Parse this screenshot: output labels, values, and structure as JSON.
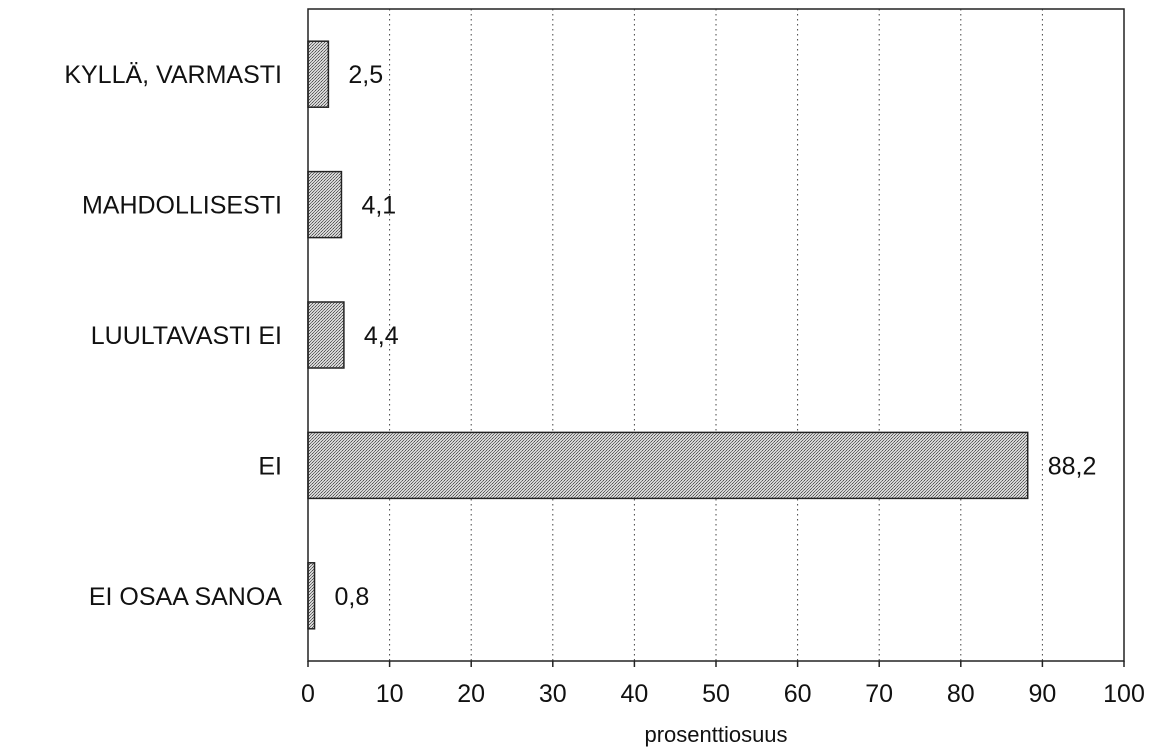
{
  "chart_data": {
    "type": "bar",
    "orientation": "horizontal",
    "categories": [
      "KYLLÄ, VARMASTI",
      "MAHDOLLISESTI",
      "LUULTAVASTI EI",
      "EI",
      "EI OSAA SANOA"
    ],
    "values": [
      2.5,
      4.1,
      4.4,
      88.2,
      0.8
    ],
    "value_labels": [
      "2,5",
      "4,1",
      "4,4",
      "88,2",
      "0,8"
    ],
    "title": "",
    "xlabel": "prosenttiosuus",
    "ylabel": "",
    "xlim": [
      0,
      100
    ],
    "x_ticks": [
      0,
      10,
      20,
      30,
      40,
      50,
      60,
      70,
      80,
      90,
      100
    ],
    "x_tick_labels": [
      "0",
      "10",
      "20",
      "30",
      "40",
      "50",
      "60",
      "70",
      "80",
      "90",
      "100"
    ],
    "grid": "vertical dotted",
    "legend": "none",
    "bar_fill": "#b8b8b8",
    "bar_stroke": "#222222"
  }
}
